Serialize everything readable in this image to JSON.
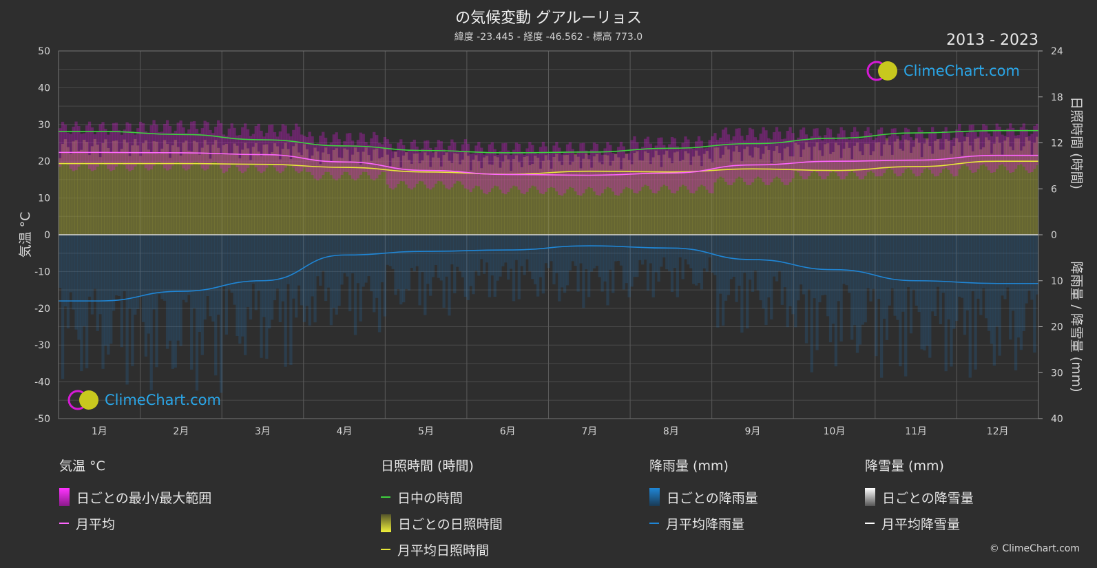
{
  "header": {
    "title": "の気候変動 グアルーリョス",
    "subtitle": "緯度 -23.445 - 経度 -46.562 - 標高 773.0",
    "years": "2013 - 2023"
  },
  "logo_text": "ClimeChart.com",
  "copyright": "© ClimeChart.com",
  "colors": {
    "background": "#2e2e2e",
    "daylight": "#3fd13f",
    "temp_avg": "#ff66ff",
    "temp_range": "#d61ad6",
    "sunshine_avg": "#e8e83a",
    "sunshine_daily": "#a0a03a",
    "rain": "#1f86d6",
    "snow": "#ffffff"
  },
  "legend": {
    "temperature": {
      "heading": "気温 °C",
      "range_label": "日ごとの最小/最大範囲",
      "avg_label": "月平均"
    },
    "sunshine": {
      "heading": "日照時間 (時間)",
      "daylight_label": "日中の時間",
      "daily_label": "日ごとの日照時間",
      "avg_label": "月平均日照時間"
    },
    "rain": {
      "heading": "降雨量 (mm)",
      "daily_label": "日ごとの降雨量",
      "avg_label": "月平均降雨量"
    },
    "snow": {
      "heading": "降雪量 (mm)",
      "daily_label": "日ごとの降雪量",
      "avg_label": "月平均降雪量"
    }
  },
  "chart_data": {
    "type": "line",
    "categories": [
      "1月",
      "2月",
      "3月",
      "4月",
      "5月",
      "6月",
      "7月",
      "8月",
      "9月",
      "10月",
      "11月",
      "12月"
    ],
    "left_axis": {
      "label": "気温 °C",
      "ylim": [
        -50,
        50
      ],
      "ticks": [
        50,
        40,
        30,
        20,
        10,
        0,
        -10,
        -20,
        -30,
        -40,
        -50
      ]
    },
    "right_axis_top": {
      "label": "日照時間 (時間)",
      "ylim": [
        0,
        24
      ],
      "ticks": [
        24,
        18,
        12,
        6,
        0
      ]
    },
    "right_axis_bottom": {
      "label": "降雨量 / 降雪量 (mm)",
      "ylim": [
        0,
        40
      ],
      "ticks": [
        0,
        10,
        20,
        30,
        40
      ]
    },
    "grid": true,
    "series": [
      {
        "name": "日中の時間",
        "axis": "sunshine",
        "values": [
          13.5,
          13.1,
          12.4,
          11.6,
          11.0,
          10.7,
          10.8,
          11.3,
          11.9,
          12.6,
          13.3,
          13.6
        ]
      },
      {
        "name": "月平均日照時間",
        "axis": "sunshine",
        "values": [
          9.3,
          9.3,
          9.2,
          8.8,
          8.2,
          7.9,
          8.3,
          8.2,
          8.6,
          8.4,
          8.9,
          9.6
        ]
      },
      {
        "name": "月平均",
        "axis": "temperature",
        "values": [
          22.4,
          22.3,
          21.8,
          19.8,
          17.5,
          16.4,
          16.2,
          16.8,
          19.0,
          20.0,
          20.3,
          21.6
        ]
      },
      {
        "name": "月平均降雨量",
        "axis": "rain",
        "values": [
          14.4,
          12.3,
          10.0,
          4.4,
          3.6,
          3.3,
          2.4,
          2.9,
          5.4,
          7.6,
          10.0,
          10.6
        ]
      },
      {
        "name": "月平均降雪量",
        "axis": "rain",
        "values": [
          0,
          0,
          0,
          0,
          0,
          0,
          0,
          0,
          0,
          0,
          0,
          0
        ]
      }
    ],
    "temp_range": {
      "name": "日ごとの最小/最大範囲",
      "min": [
        18.5,
        18.7,
        18.0,
        16.0,
        13.5,
        12.2,
        11.8,
        12.4,
        14.6,
        16.2,
        17.0,
        18.0
      ],
      "max": [
        29.0,
        29.4,
        28.5,
        26.2,
        24.2,
        23.5,
        23.5,
        25.0,
        27.5,
        27.5,
        27.5,
        28.5
      ]
    },
    "daily_sunshine_max": [
      12.5,
      12.4,
      12.0,
      11.4,
      10.8,
      10.4,
      10.6,
      11.0,
      11.6,
      12.1,
      12.6,
      12.8
    ],
    "daily_rain_max": [
      33,
      35,
      30,
      22,
      18,
      15,
      16,
      14,
      22,
      30,
      32,
      32
    ]
  }
}
